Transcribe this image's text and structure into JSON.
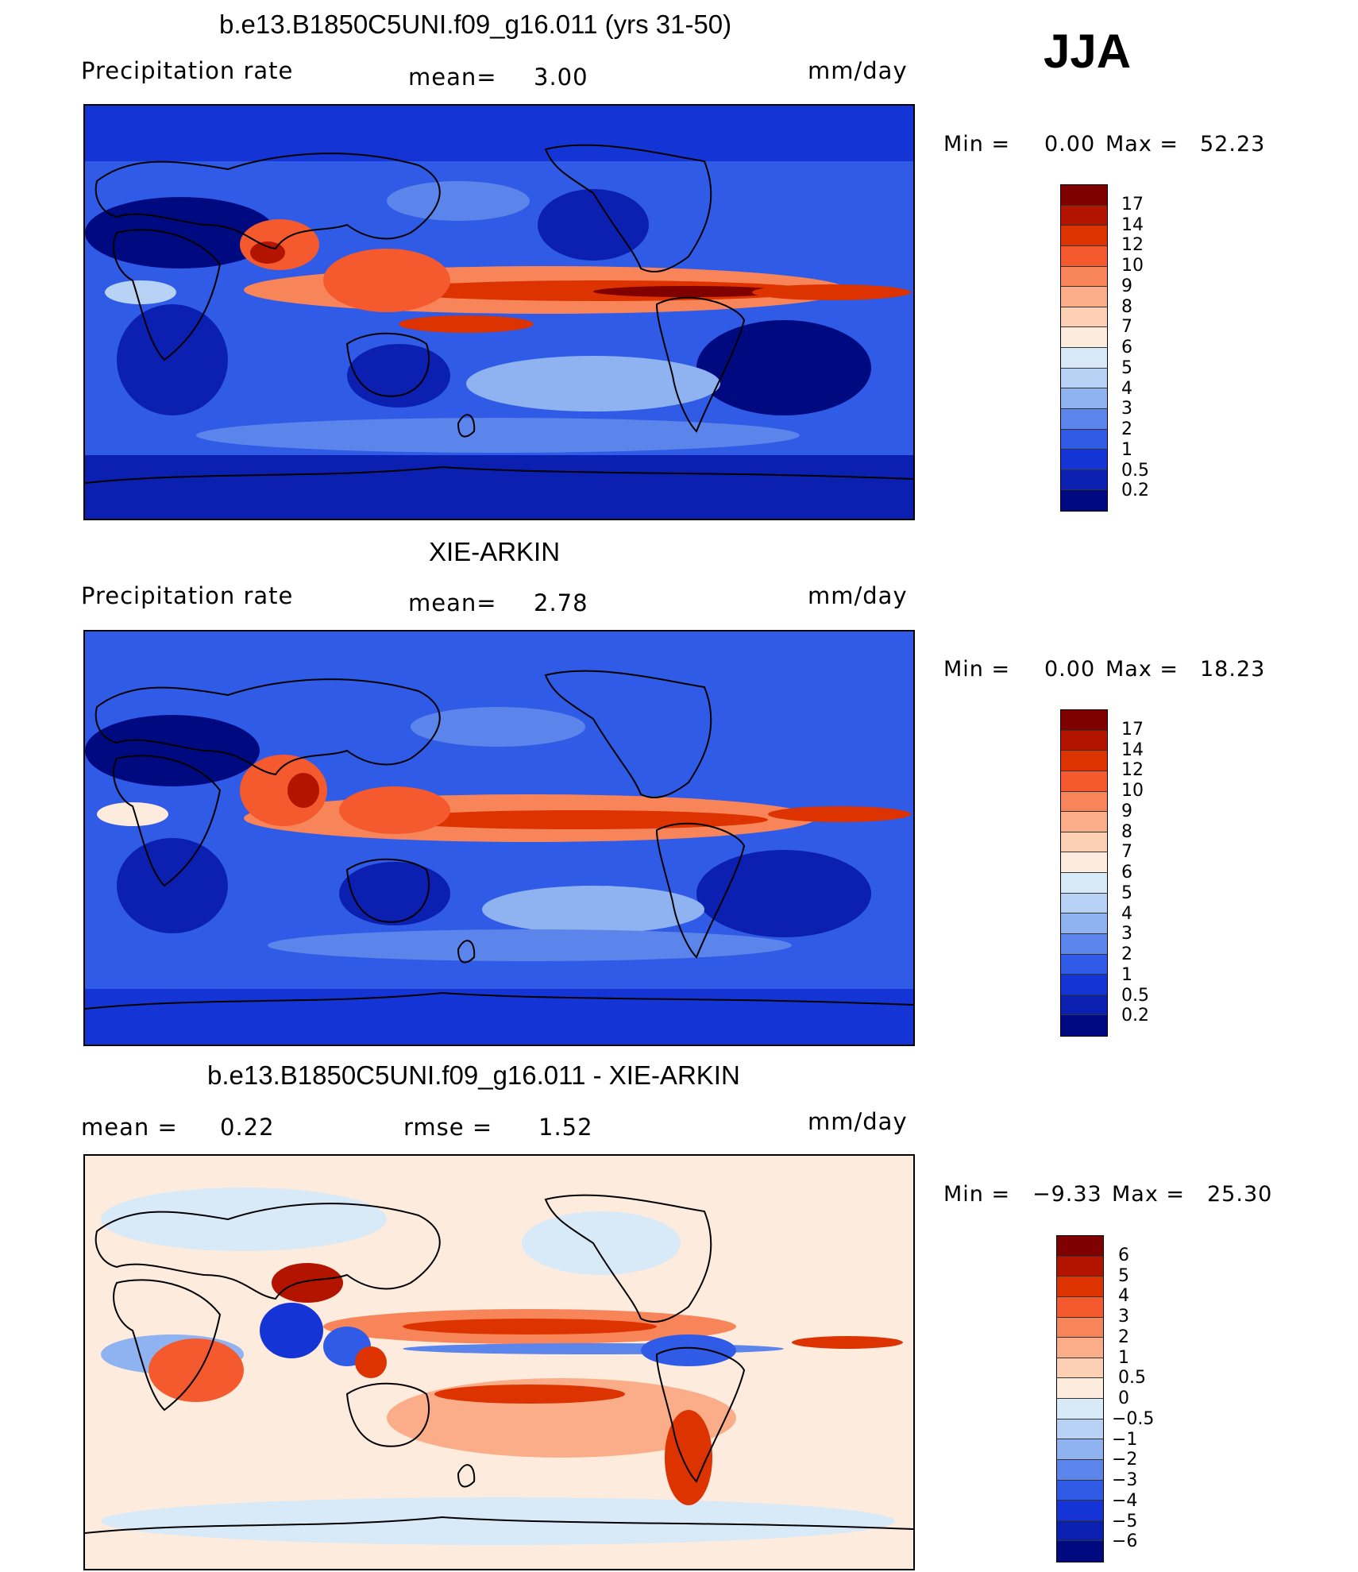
{
  "season": "JJA",
  "units": "mm/day",
  "chart_data": [
    {
      "type": "heatmap",
      "title": "b.e13.B1850C5UNI.f09_g16.011 (yrs 31-50)",
      "variable": "Precipitation rate",
      "stat_label": "mean=",
      "stat_value": "3.00",
      "units": "mm/day",
      "min_label": "Min =",
      "min_value": "0.00",
      "max_label": "Max =",
      "max_value": "52.23",
      "colorbar_levels": [
        "17",
        "14",
        "12",
        "10",
        "9",
        "8",
        "7",
        "6",
        "5",
        "4",
        "3",
        "2",
        "1",
        "0.5",
        "0.2"
      ],
      "colors": [
        "#800000",
        "#B31400",
        "#DD3300",
        "#F55A2E",
        "#F8855A",
        "#FBAC88",
        "#FDCFB5",
        "#FDEBDD",
        "#D8E9F8",
        "#B8D2F6",
        "#8FB2F0",
        "#5B85EA",
        "#2F5BE6",
        "#1434D6",
        "#0B1FB0",
        "#000A80"
      ]
    },
    {
      "type": "heatmap",
      "title": "XIE-ARKIN",
      "variable": "Precipitation rate",
      "stat_label": "mean=",
      "stat_value": "2.78",
      "units": "mm/day",
      "min_label": "Min =",
      "min_value": "0.00",
      "max_label": "Max =",
      "max_value": "18.23",
      "colorbar_levels": [
        "17",
        "14",
        "12",
        "10",
        "9",
        "8",
        "7",
        "6",
        "5",
        "4",
        "3",
        "2",
        "1",
        "0.5",
        "0.2"
      ],
      "colors": [
        "#800000",
        "#B31400",
        "#DD3300",
        "#F55A2E",
        "#F8855A",
        "#FBAC88",
        "#FDCFB5",
        "#FDEBDD",
        "#D8E9F8",
        "#B8D2F6",
        "#8FB2F0",
        "#5B85EA",
        "#2F5BE6",
        "#1434D6",
        "#0B1FB0",
        "#000A80"
      ]
    },
    {
      "type": "heatmap",
      "title": "b.e13.B1850C5UNI.f09_g16.011 - XIE-ARKIN",
      "variable": "",
      "stat_label": "mean =",
      "stat_value": "0.22",
      "rmse_label": "rmse =",
      "rmse_value": "1.52",
      "units": "mm/day",
      "min_label": "Min =",
      "min_value": "−9.33",
      "max_label": "Max =",
      "max_value": "25.30",
      "colorbar_levels": [
        "6",
        "5",
        "4",
        "3",
        "2",
        "1",
        "0.5",
        "0",
        "−0.5",
        "−1",
        "−2",
        "−3",
        "−4",
        "−5",
        "−6"
      ],
      "colors": [
        "#800000",
        "#B31400",
        "#DD3300",
        "#F55A2E",
        "#F8855A",
        "#FBAC88",
        "#FDCFB5",
        "#FDEBDD",
        "#D8E9F8",
        "#B8D2F6",
        "#8FB2F0",
        "#5B85EA",
        "#2F5BE6",
        "#1434D6",
        "#0B1FB0",
        "#000A80"
      ]
    }
  ]
}
